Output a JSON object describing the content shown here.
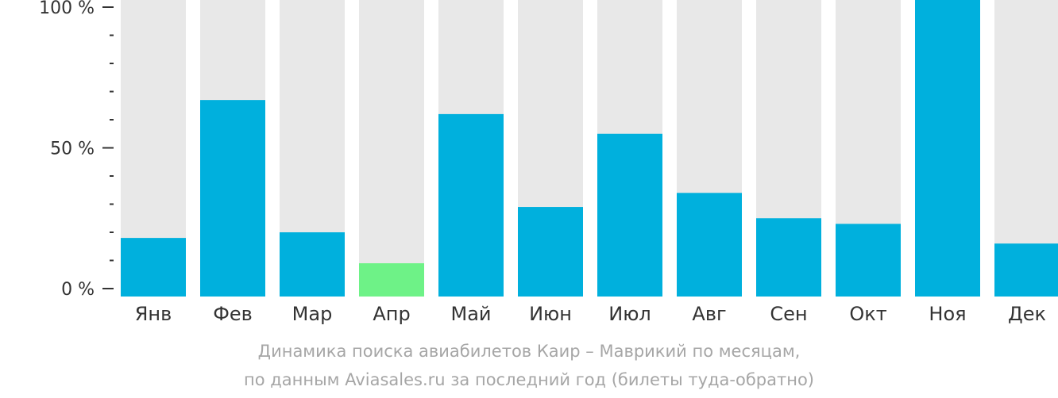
{
  "chart_data": {
    "type": "bar",
    "categories": [
      "Янв",
      "Фев",
      "Мар",
      "Апр",
      "Май",
      "Июн",
      "Июл",
      "Авг",
      "Сен",
      "Окт",
      "Ноя",
      "Дек"
    ],
    "values": [
      18,
      67,
      20,
      9,
      62,
      29,
      55,
      34,
      25,
      23,
      100,
      16
    ],
    "highlight_index": 3,
    "ylim": [
      0,
      100
    ],
    "y_ticks": [
      {
        "value": 0,
        "label": "0 %"
      },
      {
        "value": 50,
        "label": "50 %"
      },
      {
        "value": 100,
        "label": "100 %"
      }
    ],
    "minor_tick_step": 10,
    "grid": false,
    "legend": "none",
    "colors": {
      "bar": "#00b0dd",
      "highlight": "#6ef287",
      "background_bar": "#e8e8e8",
      "axis": "#333333",
      "caption": "#a6a6a6"
    }
  },
  "caption": {
    "line1": "Динамика поиска авиабилетов Каир – Маврикий по месяцам,",
    "line2": "по данным Aviasales.ru за последний год (билеты туда-обратно)"
  }
}
